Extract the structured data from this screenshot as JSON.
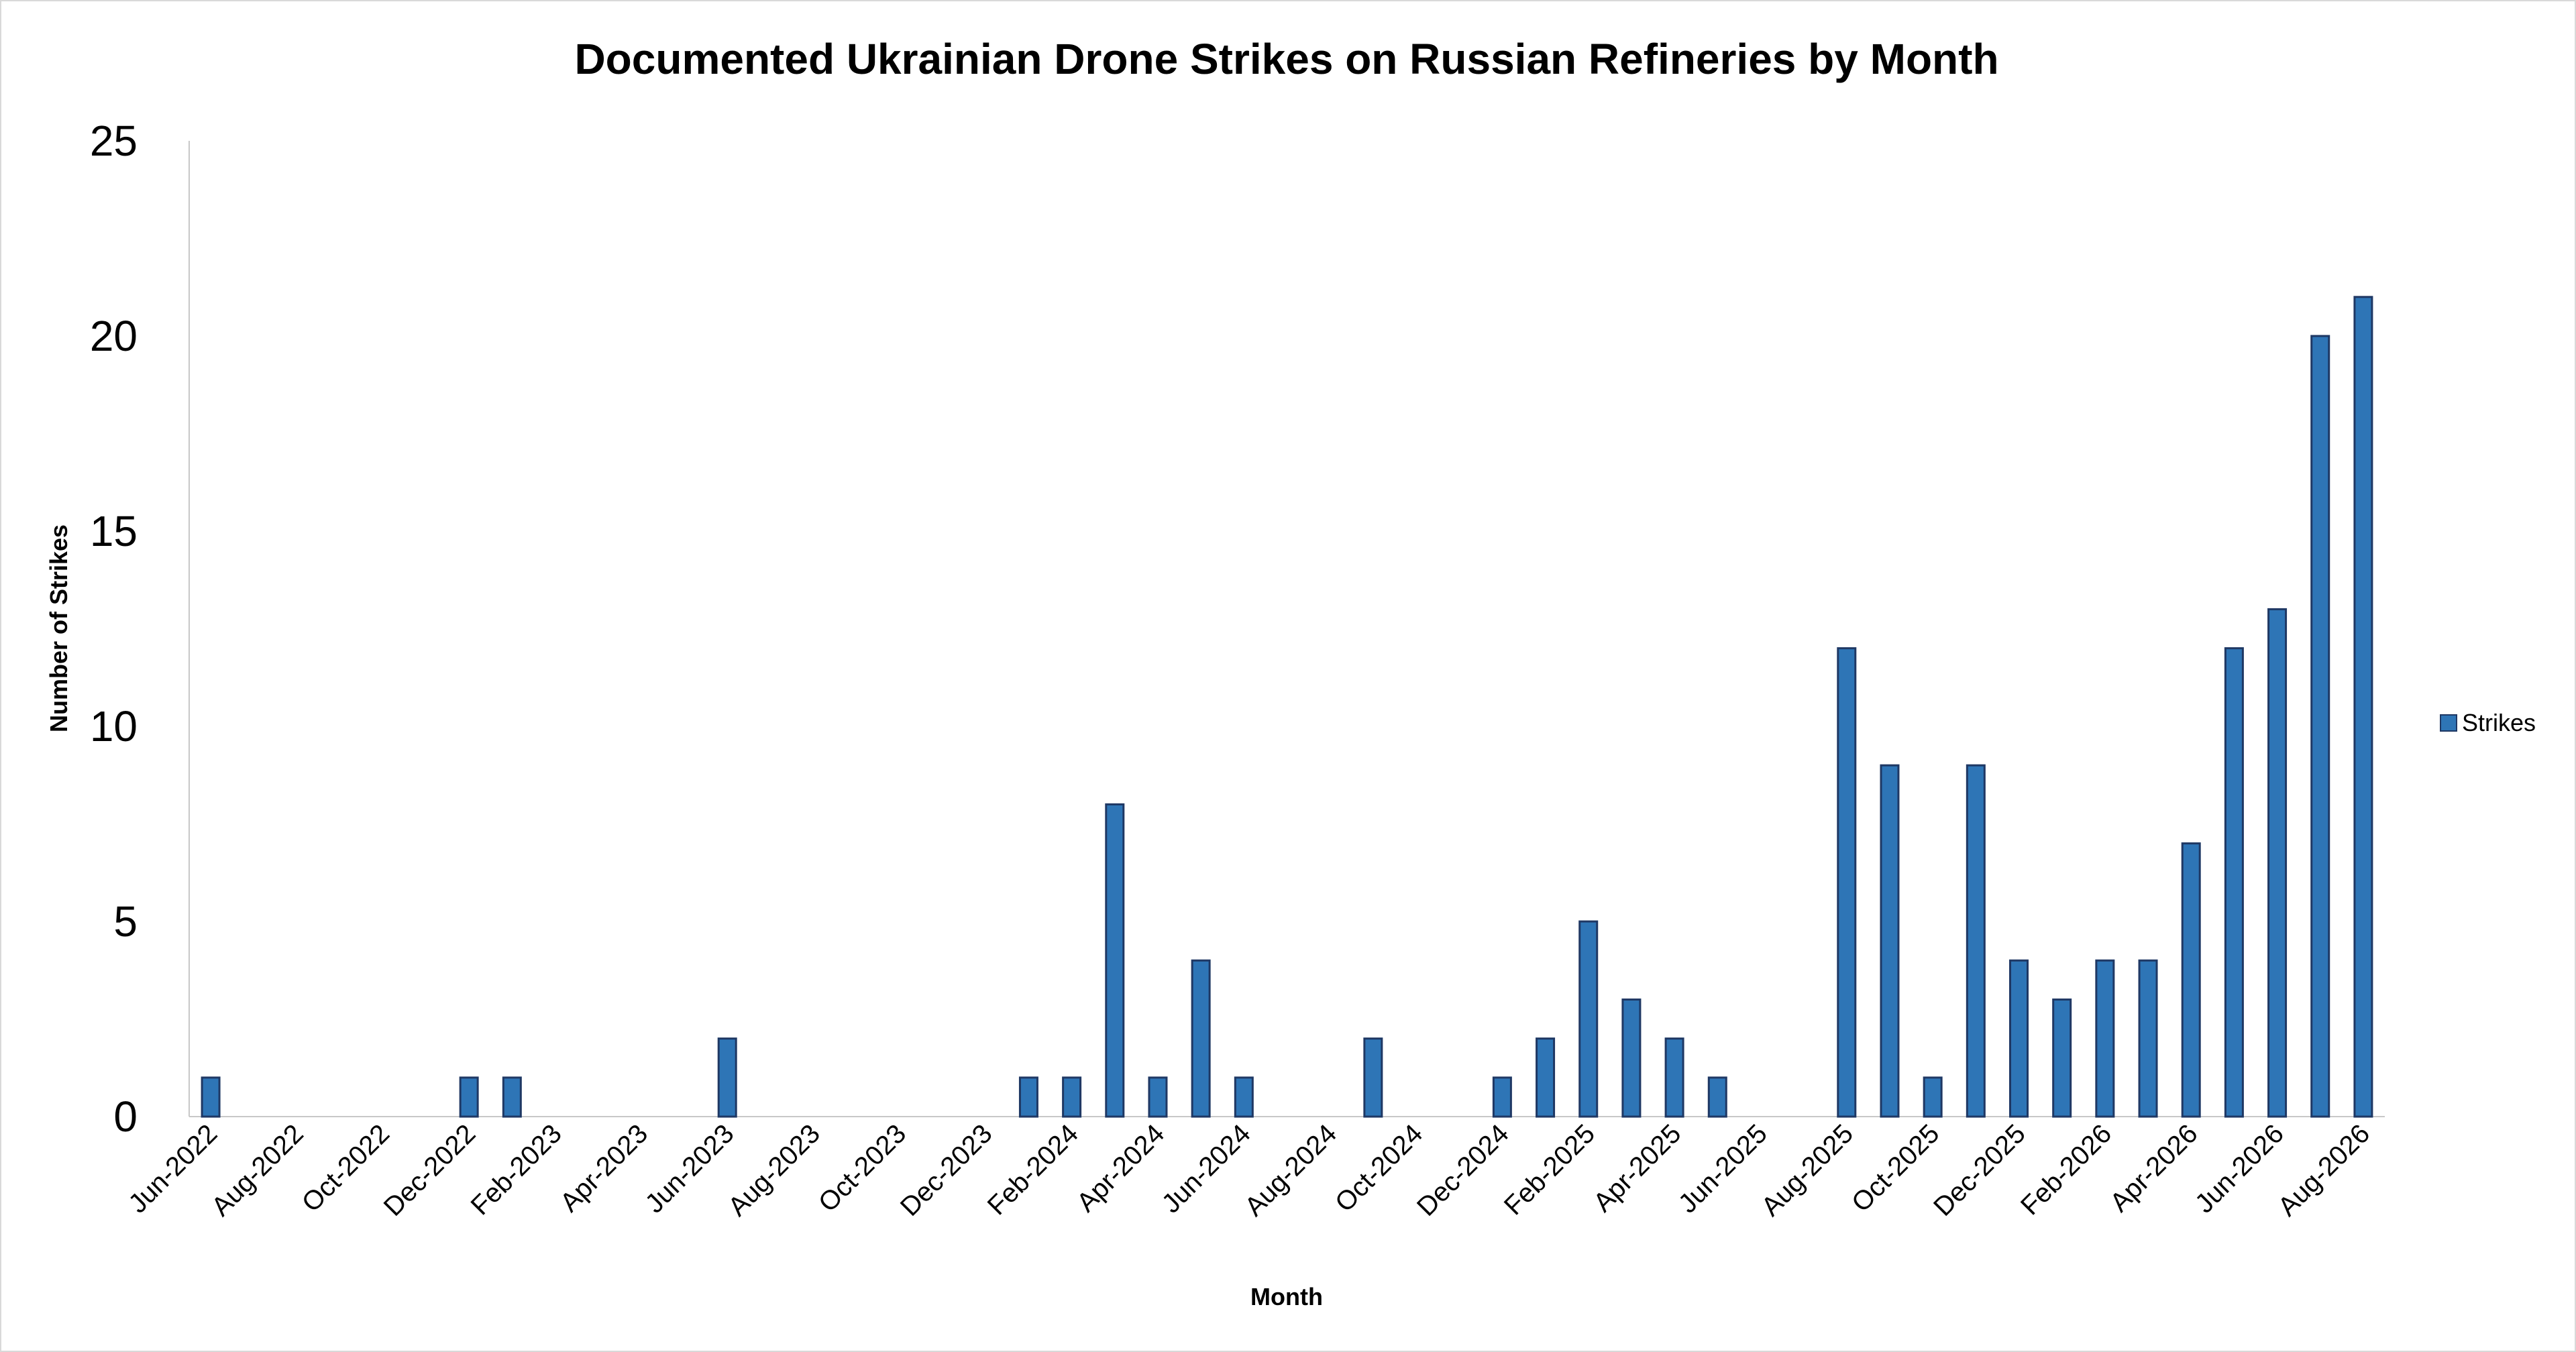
{
  "chart_data": {
    "type": "bar",
    "title": "Documented Ukrainian Drone Strikes on Russian Refineries by Month",
    "xlabel": "Month",
    "ylabel": "Number of Strikes",
    "ylim": [
      0,
      25
    ],
    "yticks": [
      0,
      5,
      10,
      15,
      20,
      25
    ],
    "grid": false,
    "legend_position": "right",
    "bar_color": "#2e75b6",
    "bar_edge_color": "#1f3864",
    "x_tick_labels": [
      "Jun-2022",
      "Aug-2022",
      "Oct-2022",
      "Dec-2022",
      "Feb-2023",
      "Apr-2023",
      "Jun-2023",
      "Aug-2023",
      "Oct-2023",
      "Dec-2023",
      "Feb-2024",
      "Apr-2024",
      "Jun-2024",
      "Aug-2024",
      "Oct-2024",
      "Dec-2024",
      "Feb-2025",
      "Apr-2025",
      "Jun-2025",
      "Aug-2025",
      "Oct-2025",
      "Dec-2025",
      "Feb-2026",
      "Apr-2026",
      "Jun-2026",
      "Aug-2026"
    ],
    "categories": [
      "Jun-2022",
      "Jul-2022",
      "Aug-2022",
      "Sep-2022",
      "Oct-2022",
      "Nov-2022",
      "Dec-2022",
      "Jan-2023",
      "Feb-2023",
      "Mar-2023",
      "Apr-2023",
      "May-2023",
      "Jun-2023",
      "Jul-2023",
      "Aug-2023",
      "Sep-2023",
      "Oct-2023",
      "Nov-2023",
      "Dec-2023",
      "Jan-2024",
      "Feb-2024",
      "Mar-2024",
      "Apr-2024",
      "May-2024",
      "Jun-2024",
      "Jul-2024",
      "Aug-2024",
      "Sep-2024",
      "Oct-2024",
      "Nov-2024",
      "Dec-2024",
      "Jan-2025",
      "Feb-2025",
      "Mar-2025",
      "Apr-2025",
      "May-2025",
      "Jun-2025",
      "Jul-2025",
      "Aug-2025",
      "Sep-2025",
      "Oct-2025",
      "Nov-2025",
      "Dec-2025",
      "Jan-2026",
      "Feb-2026",
      "Mar-2026",
      "Apr-2026",
      "May-2026",
      "Jun-2026",
      "Jul-2026",
      "Aug-2026"
    ],
    "series": [
      {
        "name": "Strikes",
        "values": [
          1,
          0,
          0,
          0,
          0,
          0,
          1,
          1,
          0,
          0,
          0,
          0,
          2,
          0,
          0,
          0,
          0,
          0,
          0,
          1,
          1,
          8,
          1,
          4,
          1,
          0,
          0,
          2,
          0,
          0,
          1,
          2,
          5,
          3,
          2,
          1,
          0,
          0,
          12,
          9,
          1,
          9,
          4,
          3,
          4,
          4,
          7,
          12,
          13,
          20,
          21
        ]
      }
    ]
  }
}
